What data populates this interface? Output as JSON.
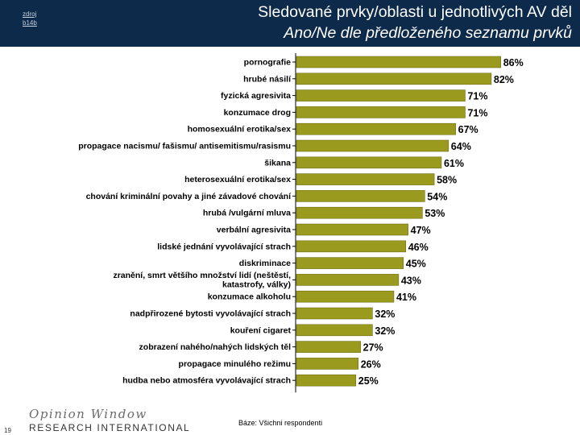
{
  "header": {
    "source_note_line1": "zdroj",
    "source_note_line2": "b14b",
    "title_line1": "Sledované prvky/oblasti u jednotlivých AV děl",
    "title_line2": "Ano/Ne dle předloženého seznamu prvků"
  },
  "footer": {
    "logo_line1": "Opinion Window",
    "logo_line2": "RESEARCH INTERNATIONAL",
    "page_number": "19",
    "base_note": "Báze: Všichni respondenti"
  },
  "colors": {
    "header_bg": "#0d2a4a",
    "bar_fill": "#9a9a1f",
    "bar_stroke": "#707014",
    "axis": "#000000"
  },
  "chart_data": {
    "type": "bar",
    "orientation": "horizontal",
    "title": "Sledované prvky/oblasti u jednotlivých AV děl",
    "xlabel": "",
    "ylabel": "",
    "xlim": [
      0,
      100
    ],
    "value_suffix": "%",
    "grid": false,
    "categories": [
      [
        "pornografie"
      ],
      [
        "hrubé násilí"
      ],
      [
        "fyzická agresivita"
      ],
      [
        "konzumace drog"
      ],
      [
        "homosexuální erotika/sex"
      ],
      [
        "propagace nacismu/ fašismu/ antisemitismu/rasismu"
      ],
      [
        "šikana"
      ],
      [
        "heterosexuální erotika/sex"
      ],
      [
        "chování kriminální povahy a jiné závadové chování"
      ],
      [
        "hrubá /vulgární mluva"
      ],
      [
        "verbální agresivita"
      ],
      [
        "lidské jednání vyvolávající strach"
      ],
      [
        "diskriminace"
      ],
      [
        "zranění, smrt většího množství lidí (neštěstí,",
        "katastrofy, války)"
      ],
      [
        "konzumace alkoholu"
      ],
      [
        "nadpřirozené bytosti vyvolávající strach"
      ],
      [
        "kouření cigaret"
      ],
      [
        "zobrazení nahého/nahých lidských těl"
      ],
      [
        "propagace minulého režimu"
      ],
      [
        "hudba nebo atmosféra vyvolávající strach"
      ]
    ],
    "values": [
      86,
      82,
      71,
      71,
      67,
      64,
      61,
      58,
      54,
      53,
      47,
      46,
      45,
      43,
      41,
      32,
      32,
      27,
      26,
      25
    ]
  }
}
